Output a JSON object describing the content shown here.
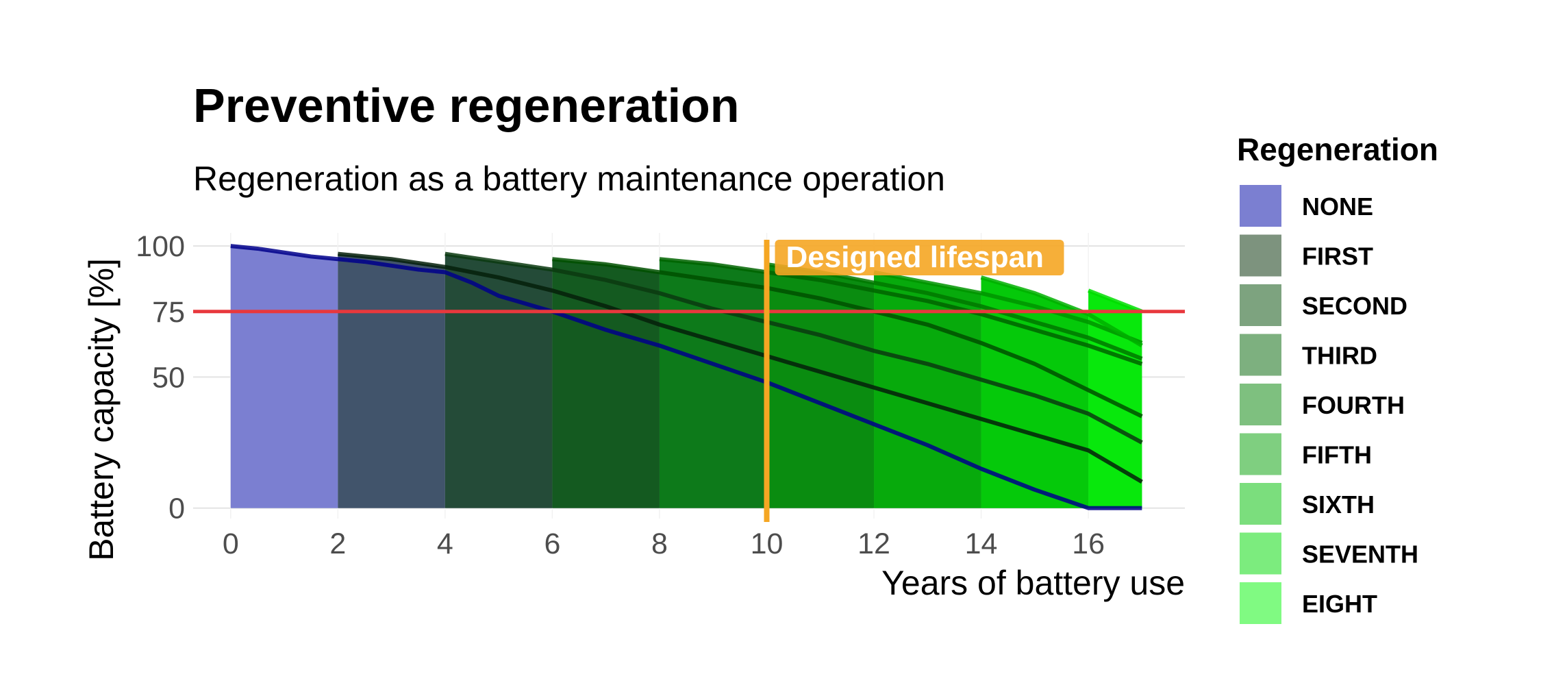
{
  "chart_data": {
    "type": "area",
    "title": "Preventive regeneration",
    "subtitle": "Regeneration as a battery maintenance operation",
    "xlabel": "Years of battery use",
    "ylabel": "Battery capacity [%]",
    "xlim": [
      -0.7,
      17.8
    ],
    "ylim": [
      -4,
      105
    ],
    "x_ticks": [
      0,
      2,
      4,
      6,
      8,
      10,
      12,
      14,
      16
    ],
    "y_ticks": [
      0,
      50,
      75,
      100
    ],
    "grid": true,
    "legend_title": "Regeneration",
    "legend_position": "right",
    "threshold": {
      "value": 75,
      "color": "#e8383d"
    },
    "annotation": {
      "x": 10,
      "text": "Designed lifespan",
      "color": "#f5a623"
    },
    "series": [
      {
        "name": "NONE",
        "start": 0,
        "end": 17,
        "fill_end": 2,
        "fill_color": "#7b7fd1",
        "line_color": "#00008b",
        "values": [
          [
            0,
            100
          ],
          [
            0.5,
            99
          ],
          [
            1,
            97.5
          ],
          [
            1.5,
            96
          ],
          [
            2,
            95
          ],
          [
            2.5,
            94
          ],
          [
            3,
            92.5
          ],
          [
            3.5,
            91
          ],
          [
            4,
            90
          ],
          [
            4.5,
            86
          ],
          [
            5,
            81
          ],
          [
            5.5,
            78
          ],
          [
            6,
            75
          ],
          [
            7,
            68
          ],
          [
            8,
            62
          ],
          [
            9,
            55
          ],
          [
            10,
            48
          ],
          [
            11,
            40
          ],
          [
            12,
            32
          ],
          [
            13,
            24
          ],
          [
            14,
            15
          ],
          [
            15,
            7
          ],
          [
            16,
            0
          ],
          [
            17,
            0
          ]
        ]
      },
      {
        "name": "FIRST",
        "start": 2,
        "end": 17,
        "fill_end": 4,
        "fill_color": "#41546b",
        "line_color": "#05200a",
        "values": [
          [
            2,
            97
          ],
          [
            3,
            95
          ],
          [
            4,
            92
          ],
          [
            5,
            88
          ],
          [
            6,
            83
          ],
          [
            7,
            77
          ],
          [
            8,
            70
          ],
          [
            9,
            64
          ],
          [
            10,
            58
          ],
          [
            11,
            52
          ],
          [
            12,
            46
          ],
          [
            13,
            40
          ],
          [
            14,
            34
          ],
          [
            15,
            28
          ],
          [
            16,
            22
          ],
          [
            17,
            10
          ]
        ]
      },
      {
        "name": "SECOND",
        "start": 4,
        "end": 17,
        "fill_end": 6,
        "fill_color": "#244b38",
        "line_color": "#0a3a10",
        "values": [
          [
            4,
            97
          ],
          [
            5,
            94
          ],
          [
            6,
            91
          ],
          [
            7,
            87
          ],
          [
            8,
            82
          ],
          [
            9,
            76
          ],
          [
            10,
            71
          ],
          [
            11,
            66
          ],
          [
            12,
            60
          ],
          [
            13,
            55
          ],
          [
            14,
            49
          ],
          [
            15,
            43
          ],
          [
            16,
            36
          ],
          [
            17,
            25
          ]
        ]
      },
      {
        "name": "THIRD",
        "start": 6,
        "end": 17,
        "fill_end": 8,
        "fill_color": "#145a20",
        "line_color": "#005000",
        "values": [
          [
            6,
            95
          ],
          [
            7,
            93
          ],
          [
            8,
            90
          ],
          [
            9,
            87
          ],
          [
            10,
            84
          ],
          [
            11,
            80
          ],
          [
            12,
            75
          ],
          [
            13,
            70
          ],
          [
            14,
            63
          ],
          [
            15,
            55
          ],
          [
            16,
            45
          ],
          [
            17,
            35
          ]
        ]
      },
      {
        "name": "FOURTH",
        "start": 8,
        "end": 17,
        "fill_end": 10,
        "fill_color": "#0d7a1a",
        "line_color": "#006400",
        "values": [
          [
            8,
            95
          ],
          [
            9,
            93
          ],
          [
            10,
            90
          ],
          [
            11,
            87
          ],
          [
            12,
            83
          ],
          [
            13,
            79
          ],
          [
            14,
            74
          ],
          [
            15,
            68
          ],
          [
            16,
            62
          ],
          [
            17,
            55
          ]
        ]
      },
      {
        "name": "FIFTH",
        "start": 10,
        "end": 17,
        "fill_end": 12,
        "fill_color": "#0a8c10",
        "line_color": "#007800",
        "values": [
          [
            10,
            93
          ],
          [
            11,
            90
          ],
          [
            12,
            86
          ],
          [
            13,
            82
          ],
          [
            14,
            77
          ],
          [
            15,
            71
          ],
          [
            16,
            65
          ],
          [
            17,
            57
          ]
        ]
      },
      {
        "name": "SIXTH",
        "start": 12,
        "end": 17,
        "fill_end": 14,
        "fill_color": "#07aa0c",
        "line_color": "#009400",
        "values": [
          [
            12,
            90
          ],
          [
            13,
            86
          ],
          [
            14,
            82
          ],
          [
            15,
            77
          ],
          [
            16,
            71
          ],
          [
            17,
            63
          ]
        ]
      },
      {
        "name": "SEVENTH",
        "start": 14,
        "end": 17,
        "fill_end": 16,
        "fill_color": "#05c90a",
        "line_color": "#00b000",
        "values": [
          [
            14,
            88
          ],
          [
            15,
            82
          ],
          [
            16,
            74
          ],
          [
            17,
            62
          ]
        ]
      },
      {
        "name": "EIGHT",
        "start": 16,
        "end": 17,
        "fill_end": 17,
        "fill_color": "#08e80c",
        "line_color": "#00dd00",
        "values": [
          [
            16,
            83
          ],
          [
            16.5,
            79
          ],
          [
            17,
            75
          ]
        ]
      }
    ],
    "legend_colors": [
      "#7b7fd1",
      "#7d937e",
      "#7da37f",
      "#7db07f",
      "#7ec07f",
      "#7fcf80",
      "#7bde7d",
      "#7cec7e",
      "#80fa82"
    ]
  }
}
